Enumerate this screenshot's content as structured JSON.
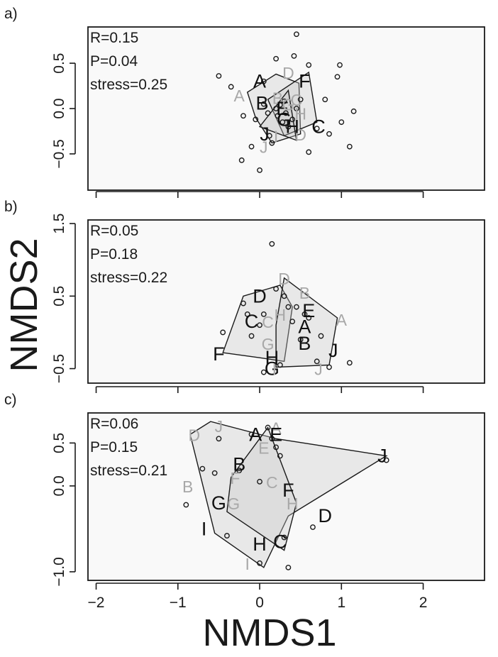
{
  "figure": {
    "xlabel": "NMDS1",
    "ylabel": "NMDS2",
    "x_ticks": [
      "−2",
      "−1",
      "0",
      "1",
      "2"
    ]
  },
  "chart_data": [
    {
      "type": "scatter",
      "panel_label": "a)",
      "stats": {
        "r": "R=0.15",
        "p": "P=0.04",
        "stress": "stress=0.25"
      },
      "xlim": [
        -2.1,
        2.75
      ],
      "ylim": [
        -0.9,
        0.9
      ],
      "y_ticks": [
        {
          "value": 0.5,
          "label": "0.5"
        },
        {
          "value": 0.0,
          "label": "0.0"
        },
        {
          "value": -0.5,
          "label": "−0.5"
        }
      ],
      "points": [
        [
          -0.5,
          0.36
        ],
        [
          -0.35,
          0.24
        ],
        [
          -0.2,
          -0.08
        ],
        [
          -0.22,
          -0.57
        ],
        [
          -0.05,
          -0.12
        ],
        [
          -0.1,
          -0.42
        ],
        [
          0.0,
          -0.68
        ],
        [
          0.05,
          0.05
        ],
        [
          0.1,
          -0.05
        ],
        [
          0.12,
          -0.3
        ],
        [
          0.2,
          0.0
        ],
        [
          0.25,
          0.04
        ],
        [
          0.3,
          0.08
        ],
        [
          0.22,
          -0.08
        ],
        [
          0.28,
          -0.15
        ],
        [
          0.32,
          -0.05
        ],
        [
          0.35,
          -0.2
        ],
        [
          0.4,
          -0.12
        ],
        [
          0.45,
          0.0
        ],
        [
          0.5,
          0.1
        ],
        [
          0.45,
          0.82
        ],
        [
          0.42,
          0.58
        ],
        [
          0.2,
          0.55
        ],
        [
          0.6,
          0.48
        ],
        [
          0.7,
          -0.22
        ],
        [
          0.8,
          0.1
        ],
        [
          0.85,
          -0.28
        ],
        [
          0.95,
          0.35
        ],
        [
          0.98,
          0.48
        ],
        [
          1.0,
          -0.15
        ],
        [
          1.1,
          -0.42
        ],
        [
          1.15,
          -0.03
        ],
        [
          0.6,
          -0.48
        ],
        [
          0.05,
          0.3
        ],
        [
          0.15,
          -0.38
        ]
      ],
      "labels": [
        {
          "t": "A",
          "x": 0.0,
          "y": 0.3,
          "dark": true
        },
        {
          "t": "A",
          "x": -0.25,
          "y": 0.15,
          "dark": false
        },
        {
          "t": "B",
          "x": 0.03,
          "y": 0.06,
          "dark": true
        },
        {
          "t": "B",
          "x": 0.22,
          "y": 0.12,
          "dark": false
        },
        {
          "t": "C",
          "x": 0.72,
          "y": -0.2,
          "dark": true
        },
        {
          "t": "C",
          "x": 0.45,
          "y": 0.1,
          "dark": false
        },
        {
          "t": "D",
          "x": 0.35,
          "y": 0.4,
          "dark": false
        },
        {
          "t": "D",
          "x": 0.5,
          "y": -0.28,
          "dark": false
        },
        {
          "t": "E",
          "x": 0.28,
          "y": 0.0,
          "dark": true
        },
        {
          "t": "F",
          "x": 0.55,
          "y": 0.3,
          "dark": true
        },
        {
          "t": "G",
          "x": 0.3,
          "y": -0.12,
          "dark": true
        },
        {
          "t": "G",
          "x": 0.35,
          "y": 0.05,
          "dark": false
        },
        {
          "t": "H",
          "x": 0.4,
          "y": -0.2,
          "dark": true
        },
        {
          "t": "H",
          "x": 0.5,
          "y": -0.05,
          "dark": false
        },
        {
          "t": "I",
          "x": 0.2,
          "y": -0.3,
          "dark": false
        },
        {
          "t": "J",
          "x": 0.06,
          "y": -0.28,
          "dark": true
        },
        {
          "t": "J",
          "x": 0.05,
          "y": -0.42,
          "dark": false
        }
      ],
      "hulls": [
        [
          [
            -0.15,
            0.18
          ],
          [
            0.2,
            0.38
          ],
          [
            0.48,
            0.28
          ],
          [
            0.5,
            -0.28
          ],
          [
            0.15,
            -0.38
          ],
          [
            -0.05,
            -0.1
          ]
        ],
        [
          [
            0.1,
            0.1
          ],
          [
            0.6,
            0.4
          ],
          [
            0.7,
            -0.15
          ],
          [
            0.3,
            -0.3
          ]
        ],
        [
          [
            0.0,
            -0.2
          ],
          [
            0.35,
            0.2
          ],
          [
            0.45,
            -0.35
          ]
        ]
      ]
    },
    {
      "type": "scatter",
      "panel_label": "b)",
      "stats": {
        "r": "R=0.05",
        "p": "P=0.18",
        "stress": "stress=0.22"
      },
      "xlim": [
        -2.1,
        2.75
      ],
      "ylim": [
        -0.7,
        1.55
      ],
      "y_ticks": [
        {
          "value": 1.5,
          "label": "1.5"
        },
        {
          "value": 0.5,
          "label": "0.5"
        },
        {
          "value": -0.5,
          "label": "−0.5"
        }
      ],
      "points": [
        [
          -0.45,
          0.0
        ],
        [
          -0.2,
          0.4
        ],
        [
          -0.15,
          0.25
        ],
        [
          -0.1,
          -0.05
        ],
        [
          0.0,
          0.1
        ],
        [
          0.05,
          0.25
        ],
        [
          0.15,
          1.22
        ],
        [
          0.2,
          0.6
        ],
        [
          0.3,
          0.5
        ],
        [
          0.35,
          0.35
        ],
        [
          0.4,
          0.15
        ],
        [
          0.45,
          0.35
        ],
        [
          0.5,
          -0.1
        ],
        [
          0.55,
          0.25
        ],
        [
          0.6,
          0.2
        ],
        [
          0.7,
          -0.4
        ],
        [
          0.75,
          -0.05
        ],
        [
          0.85,
          -0.48
        ],
        [
          1.1,
          -0.42
        ],
        [
          0.25,
          -0.45
        ],
        [
          0.05,
          -0.55
        ]
      ],
      "labels": [
        {
          "t": "A",
          "x": 0.55,
          "y": 0.08,
          "dark": true
        },
        {
          "t": "A",
          "x": 1.0,
          "y": 0.18,
          "dark": false
        },
        {
          "t": "B",
          "x": 0.55,
          "y": -0.15,
          "dark": true
        },
        {
          "t": "B",
          "x": 0.55,
          "y": 0.55,
          "dark": false
        },
        {
          "t": "C",
          "x": -0.1,
          "y": 0.15,
          "dark": true
        },
        {
          "t": "C",
          "x": 0.1,
          "y": 0.15,
          "dark": false
        },
        {
          "t": "D",
          "x": 0.0,
          "y": 0.5,
          "dark": true
        },
        {
          "t": "D",
          "x": 0.3,
          "y": 0.75,
          "dark": false
        },
        {
          "t": "E",
          "x": 0.6,
          "y": 0.3,
          "dark": true
        },
        {
          "t": "F",
          "x": -0.5,
          "y": -0.3,
          "dark": true
        },
        {
          "t": "G",
          "x": 0.15,
          "y": -0.5,
          "dark": true
        },
        {
          "t": "G",
          "x": 0.1,
          "y": -0.15,
          "dark": false
        },
        {
          "t": "H",
          "x": 0.15,
          "y": -0.35,
          "dark": true
        },
        {
          "t": "H",
          "x": 0.25,
          "y": 0.25,
          "dark": false
        },
        {
          "t": "I",
          "x": 0.18,
          "y": -0.5,
          "dark": false
        },
        {
          "t": "J",
          "x": 0.9,
          "y": -0.25,
          "dark": true
        },
        {
          "t": "J",
          "x": 0.72,
          "y": -0.5,
          "dark": false
        }
      ],
      "hulls": [
        [
          [
            -0.45,
            -0.28
          ],
          [
            -0.2,
            0.5
          ],
          [
            0.25,
            0.65
          ],
          [
            0.4,
            0.35
          ],
          [
            0.3,
            -0.4
          ],
          [
            0.0,
            -0.35
          ]
        ],
        [
          [
            0.3,
            0.75
          ],
          [
            0.95,
            0.2
          ],
          [
            0.85,
            -0.45
          ],
          [
            0.2,
            -0.48
          ],
          [
            0.2,
            0.1
          ]
        ]
      ]
    },
    {
      "type": "scatter",
      "panel_label": "c)",
      "stats": {
        "r": "R=0.06",
        "p": "P=0.15",
        "stress": "stress=0.21"
      },
      "xlim": [
        -2.1,
        2.75
      ],
      "ylim": [
        -1.1,
        0.85
      ],
      "y_ticks": [
        {
          "value": 0.5,
          "label": "0.5"
        },
        {
          "value": 0.0,
          "label": "0.0"
        },
        {
          "value": -1.0,
          "label": "−1.0"
        }
      ],
      "points": [
        [
          -0.9,
          -0.22
        ],
        [
          -0.7,
          0.2
        ],
        [
          -0.55,
          0.15
        ],
        [
          -0.5,
          0.55
        ],
        [
          -0.4,
          -0.58
        ],
        [
          -0.25,
          0.18
        ],
        [
          0.0,
          0.05
        ],
        [
          0.1,
          0.68
        ],
        [
          0.15,
          0.55
        ],
        [
          0.25,
          0.35
        ],
        [
          0.3,
          -0.6
        ],
        [
          0.35,
          -0.95
        ],
        [
          0.65,
          -0.48
        ],
        [
          1.55,
          0.3
        ],
        [
          0.0,
          -0.9
        ],
        [
          -0.1,
          0.6
        ],
        [
          0.2,
          0.45
        ]
      ],
      "labels": [
        {
          "t": "A",
          "x": -0.05,
          "y": 0.6,
          "dark": true
        },
        {
          "t": "A",
          "x": 0.2,
          "y": 0.68,
          "dark": false
        },
        {
          "t": "B",
          "x": -0.25,
          "y": 0.25,
          "dark": true
        },
        {
          "t": "B",
          "x": -0.88,
          "y": 0.0,
          "dark": false
        },
        {
          "t": "C",
          "x": 0.25,
          "y": -0.65,
          "dark": true
        },
        {
          "t": "C",
          "x": 0.15,
          "y": 0.05,
          "dark": false
        },
        {
          "t": "D",
          "x": 0.8,
          "y": -0.35,
          "dark": true
        },
        {
          "t": "D",
          "x": -0.8,
          "y": 0.6,
          "dark": false
        },
        {
          "t": "E",
          "x": 0.2,
          "y": 0.6,
          "dark": true
        },
        {
          "t": "E",
          "x": 0.05,
          "y": 0.45,
          "dark": false
        },
        {
          "t": "F",
          "x": 0.35,
          "y": -0.05,
          "dark": true
        },
        {
          "t": "F",
          "x": -0.3,
          "y": 0.1,
          "dark": false
        },
        {
          "t": "G",
          "x": -0.5,
          "y": -0.2,
          "dark": true
        },
        {
          "t": "G",
          "x": -0.32,
          "y": -0.2,
          "dark": false
        },
        {
          "t": "H",
          "x": 0.0,
          "y": -0.68,
          "dark": true
        },
        {
          "t": "H",
          "x": 0.4,
          "y": -0.2,
          "dark": false
        },
        {
          "t": "I",
          "x": -0.68,
          "y": -0.5,
          "dark": true
        },
        {
          "t": "I",
          "x": -0.15,
          "y": -0.9,
          "dark": false
        },
        {
          "t": "J",
          "x": 1.5,
          "y": 0.35,
          "dark": true
        },
        {
          "t": "J",
          "x": -0.5,
          "y": 0.7,
          "dark": false
        }
      ],
      "hulls": [
        [
          [
            -0.85,
            0.6
          ],
          [
            -0.6,
            0.75
          ],
          [
            0.2,
            0.55
          ],
          [
            1.55,
            0.35
          ],
          [
            0.35,
            -0.35
          ],
          [
            0.05,
            -0.95
          ],
          [
            -0.55,
            -0.55
          ]
        ],
        [
          [
            -0.35,
            0.1
          ],
          [
            0.1,
            0.68
          ],
          [
            0.45,
            -0.2
          ],
          [
            0.3,
            -0.75
          ],
          [
            -0.4,
            -0.3
          ]
        ]
      ]
    }
  ]
}
